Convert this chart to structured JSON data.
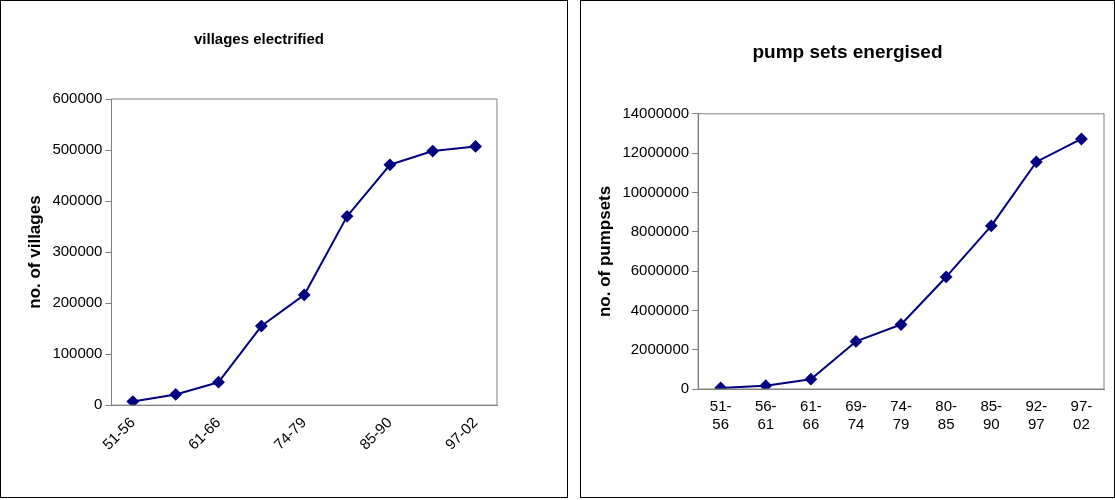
{
  "chart_data": [
    {
      "type": "line",
      "title": "villages electrified",
      "ylabel": "no. of villages",
      "categories": [
        "51-56",
        null,
        "61-66",
        null,
        "74-79",
        null,
        "85-90",
        null,
        "97-02"
      ],
      "series": [
        {
          "color": "#000080",
          "values": [
            7000,
            21000,
            45000,
            155000,
            216000,
            370000,
            471000,
            498000,
            507000
          ]
        }
      ],
      "ylim": [
        0,
        600000
      ],
      "yticks": [
        0,
        100000,
        200000,
        300000,
        400000,
        500000,
        600000
      ],
      "grid": false,
      "legend": false,
      "marker": "diamond",
      "line_style": "solid"
    },
    {
      "type": "line",
      "title": "pump sets energised",
      "ylabel": "no. of pumpsets",
      "categories": [
        "51-56",
        "56-61",
        "61-66",
        "69-74",
        "74-79",
        "80-85",
        "85-90",
        "92-97",
        "97-02"
      ],
      "series": [
        {
          "color": "#000080",
          "values": [
            50000,
            170000,
            500000,
            2420000,
            3280000,
            5700000,
            8300000,
            11550000,
            12720000
          ]
        }
      ],
      "ylim": [
        0,
        14000000
      ],
      "yticks": [
        0,
        2000000,
        4000000,
        6000000,
        8000000,
        10000000,
        12000000,
        14000000
      ],
      "grid": false,
      "legend": false,
      "marker": "diamond",
      "line_style": "solid"
    }
  ]
}
